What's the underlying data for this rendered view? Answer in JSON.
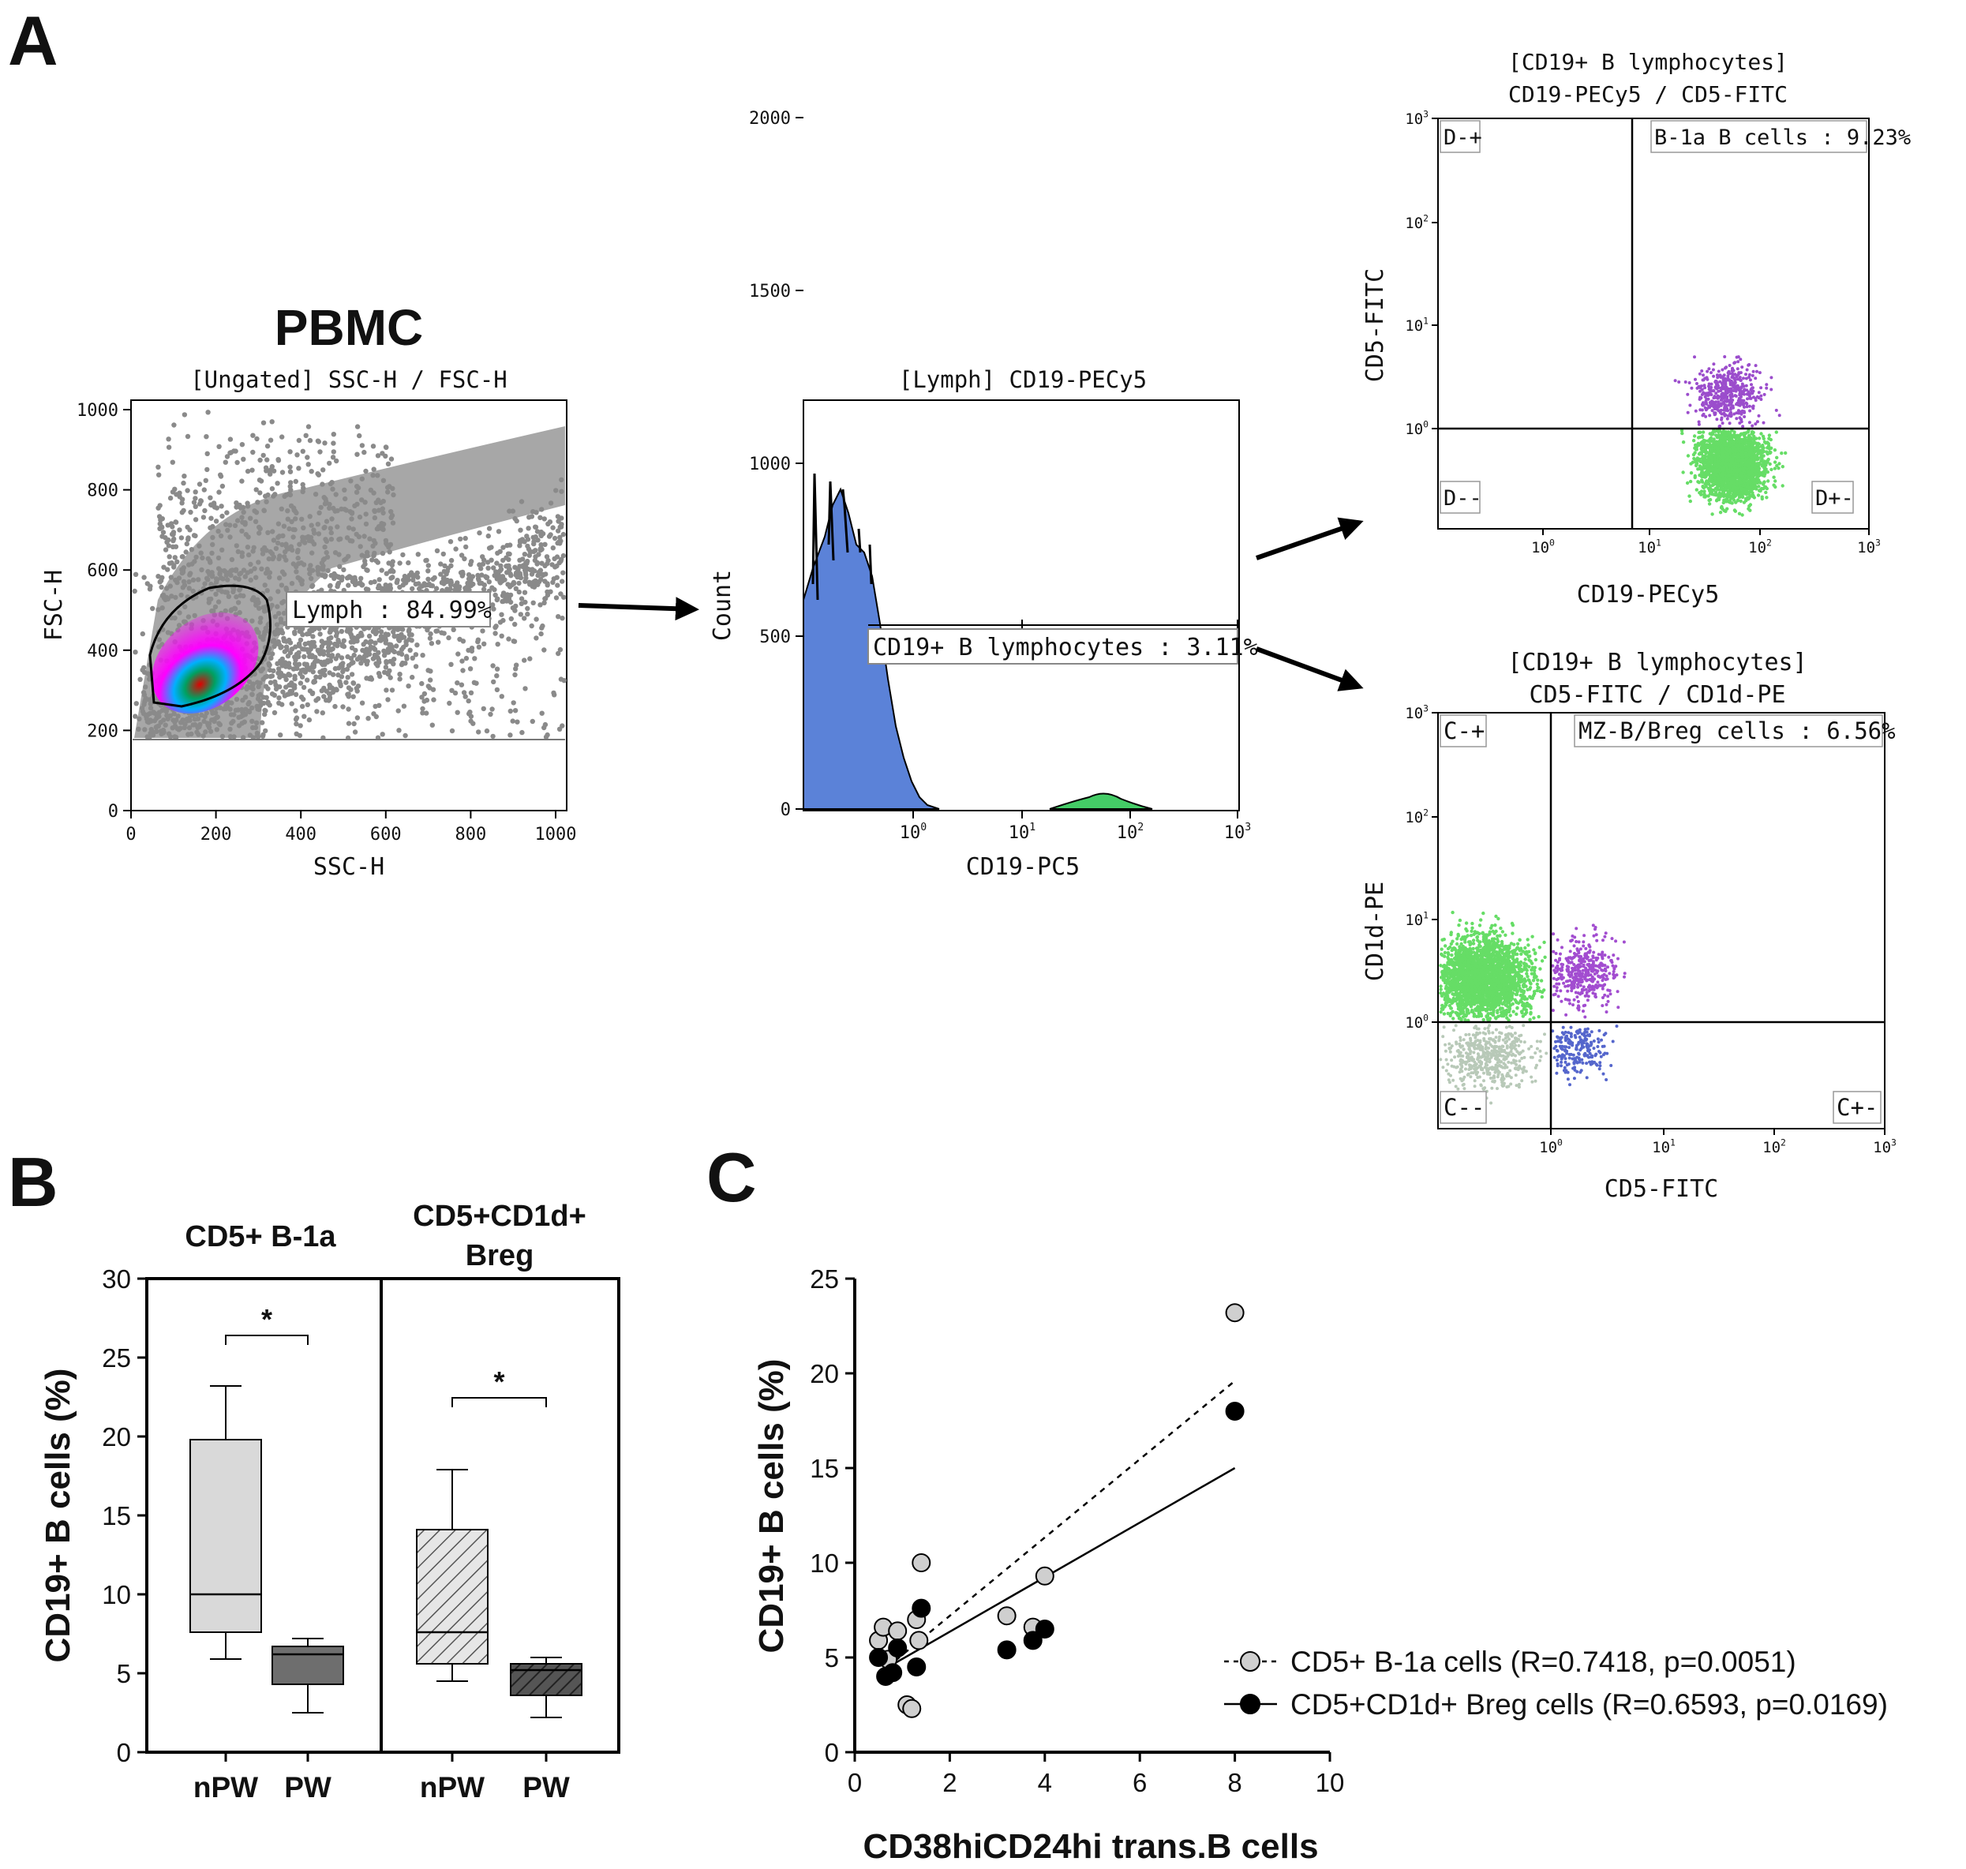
{
  "panel_letters": {
    "a": "A",
    "b": "B",
    "c": "C"
  },
  "panel_a": {
    "pbmc_title": "PBMC",
    "scatter": {
      "subtitle": "[Ungated] SSC-H / FSC-H",
      "xlabel": "SSC-H",
      "ylabel": "FSC-H",
      "ticks": [
        "0",
        "200",
        "400",
        "600",
        "800",
        "1000"
      ],
      "gate_label": "Lymph : 84.99%"
    },
    "histogram": {
      "subtitle": "[Lymph] CD19-PECy5",
      "xlabel": "CD19-PC5",
      "ylabel": "Count",
      "yticks": [
        "0",
        "500",
        "1000",
        "1500",
        "2000"
      ],
      "xticks": [
        "10^0",
        "10^1",
        "10^2",
        "10^3"
      ],
      "gate_label": "CD19+ B lymphocytes : 3.11%"
    },
    "dot_top": {
      "subtitle_1": "[CD19+ B lymphocytes]",
      "subtitle_2": "CD19-PECy5 / CD5-FITC",
      "xlabel": "CD19-PECy5",
      "ylabel": "CD5-FITC",
      "xticks": [
        "10^0",
        "10^1",
        "10^2",
        "10^3"
      ],
      "yticks": [
        "10^0",
        "10^1",
        "10^2",
        "10^3"
      ],
      "quadrants": [
        "D-+",
        "D--",
        "D+-"
      ],
      "gate_label": "B-1a B cells : 9.23%"
    },
    "dot_bottom": {
      "subtitle_1": "[CD19+ B lymphocytes]",
      "subtitle_2": "CD5-FITC / CD1d-PE",
      "xlabel": "CD5-FITC",
      "ylabel": "CD1d-PE",
      "xticks": [
        "10^0",
        "10^1",
        "10^2",
        "10^3"
      ],
      "yticks": [
        "10^0",
        "10^1",
        "10^2",
        "10^3"
      ],
      "quadrants": [
        "C-+",
        "C--",
        "C+-"
      ],
      "gate_label": "MZ-B/Breg cells : 6.56%"
    }
  },
  "panel_b": {
    "group1_title": "CD5+ B-1a",
    "group2_title_1": "CD5+CD1d+",
    "group2_title_2": "Breg",
    "ylabel": "CD19+ B cells (%)",
    "sig_marker": "*",
    "chart_data": {
      "type": "box",
      "ylim": [
        0,
        30
      ],
      "yticks": [
        0,
        5,
        10,
        15,
        20,
        25,
        30
      ],
      "boxes": [
        {
          "group": "CD5+ B-1a",
          "category": "nPW",
          "min": 5.9,
          "q1": 7.6,
          "median": 10.0,
          "q3": 19.8,
          "max": 23.2,
          "fill": "#d9d9d9"
        },
        {
          "group": "CD5+ B-1a",
          "category": "PW",
          "min": 2.5,
          "q1": 4.3,
          "median": 6.2,
          "q3": 6.7,
          "max": 7.2,
          "fill": "#6e6e6e"
        },
        {
          "group": "CD5+CD1d+ Breg",
          "category": "nPW",
          "min": 4.5,
          "q1": 5.6,
          "median": 7.6,
          "q3": 14.1,
          "max": 17.9,
          "fill": "hatch-light"
        },
        {
          "group": "CD5+CD1d+ Breg",
          "category": "PW",
          "min": 2.2,
          "q1": 3.6,
          "median": 5.2,
          "q3": 5.6,
          "max": 6.0,
          "fill": "hatch-dark"
        }
      ]
    }
  },
  "panel_c": {
    "xlabel": "CD38hiCD24hi trans.B cells",
    "ylabel": "CD19+ B cells (%)",
    "legend": [
      "CD5+ B-1a cells (R=0.7418, p=0.0051)",
      "CD5+CD1d+ Breg cells (R=0.6593, p=0.0169)"
    ],
    "chart_data": {
      "type": "scatter",
      "xlim": [
        0,
        10
      ],
      "ylim": [
        0,
        25
      ],
      "xticks": [
        0,
        2,
        4,
        6,
        8,
        10
      ],
      "yticks": [
        0,
        5,
        10,
        15,
        20,
        25
      ],
      "series": [
        {
          "name": "CD5+ B-1a cells (R=0.7418, p=0.0051)",
          "marker": "open-grey",
          "points": [
            [
              0.5,
              5.9
            ],
            [
              0.6,
              6.6
            ],
            [
              0.7,
              4.9
            ],
            [
              0.9,
              6.4
            ],
            [
              1.1,
              2.5
            ],
            [
              1.2,
              2.3
            ],
            [
              1.3,
              7.0
            ],
            [
              1.35,
              5.9
            ],
            [
              1.4,
              10.0
            ],
            [
              3.2,
              7.2
            ],
            [
              3.75,
              6.6
            ],
            [
              4.0,
              9.3
            ],
            [
              8.0,
              23.2
            ]
          ],
          "fit": [
            [
              0.5,
              4.1
            ],
            [
              8.0,
              19.6
            ]
          ]
        },
        {
          "name": "CD5+CD1d+ Breg cells (R=0.6593, p=0.0169)",
          "marker": "filled-black",
          "points": [
            [
              0.5,
              5.0
            ],
            [
              0.65,
              4.0
            ],
            [
              0.8,
              4.2
            ],
            [
              0.9,
              5.5
            ],
            [
              1.3,
              4.5
            ],
            [
              1.4,
              7.6
            ],
            [
              3.2,
              5.4
            ],
            [
              3.75,
              5.9
            ],
            [
              4.0,
              6.5
            ],
            [
              8.0,
              18.0
            ]
          ],
          "fit": [
            [
              0.5,
              4.2
            ],
            [
              8.0,
              15.0
            ]
          ]
        }
      ]
    }
  }
}
